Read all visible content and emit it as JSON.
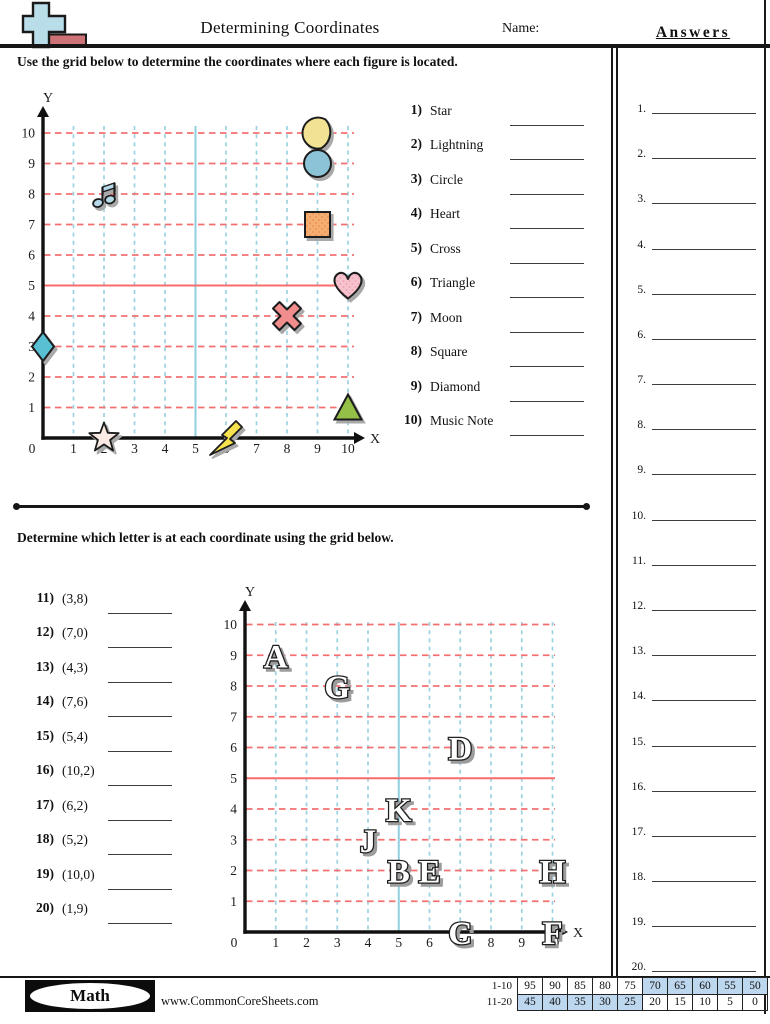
{
  "header": {
    "title": "Determining Coordinates",
    "name_label": "Name:"
  },
  "answers_panel": {
    "heading": "Answers",
    "items": [
      "1.",
      "2.",
      "3.",
      "4.",
      "5.",
      "6.",
      "7.",
      "8.",
      "9.",
      "10.",
      "11.",
      "12.",
      "13.",
      "14.",
      "15.",
      "16.",
      "17.",
      "18.",
      "19.",
      "20."
    ]
  },
  "section1": {
    "instruction": "Use the grid below to determine the coordinates where each figure is located.",
    "questions": [
      {
        "num": "1)",
        "label": "Star"
      },
      {
        "num": "2)",
        "label": "Lightning"
      },
      {
        "num": "3)",
        "label": "Circle"
      },
      {
        "num": "4)",
        "label": "Heart"
      },
      {
        "num": "5)",
        "label": "Cross"
      },
      {
        "num": "6)",
        "label": "Triangle"
      },
      {
        "num": "7)",
        "label": "Moon"
      },
      {
        "num": "8)",
        "label": "Square"
      },
      {
        "num": "9)",
        "label": "Diamond"
      },
      {
        "num": "10)",
        "label": "Music Note"
      }
    ]
  },
  "section2": {
    "instruction": "Determine which letter is at each coordinate using the grid below.",
    "questions": [
      {
        "num": "11)",
        "label": "(3,8)"
      },
      {
        "num": "12)",
        "label": "(7,0)"
      },
      {
        "num": "13)",
        "label": "(4,3)"
      },
      {
        "num": "14)",
        "label": "(7,6)"
      },
      {
        "num": "15)",
        "label": "(5,4)"
      },
      {
        "num": "16)",
        "label": "(10,2)"
      },
      {
        "num": "17)",
        "label": "(6,2)"
      },
      {
        "num": "18)",
        "label": "(5,2)"
      },
      {
        "num": "19)",
        "label": "(10,0)"
      },
      {
        "num": "20)",
        "label": "(1,9)"
      }
    ]
  },
  "footer": {
    "brand": "Math",
    "website": "www.CommonCoreSheets.com",
    "shade_color": "#bdd7ee",
    "score_table": {
      "rows": [
        {
          "label": "1-10",
          "cells": [
            {
              "v": "95",
              "shaded": false
            },
            {
              "v": "90",
              "shaded": false
            },
            {
              "v": "85",
              "shaded": false
            },
            {
              "v": "80",
              "shaded": false
            },
            {
              "v": "75",
              "shaded": false
            },
            {
              "v": "70",
              "shaded": true
            },
            {
              "v": "65",
              "shaded": true
            },
            {
              "v": "60",
              "shaded": true
            },
            {
              "v": "55",
              "shaded": true
            },
            {
              "v": "50",
              "shaded": true
            }
          ]
        },
        {
          "label": "11-20",
          "cells": [
            {
              "v": "45",
              "shaded": true
            },
            {
              "v": "40",
              "shaded": true
            },
            {
              "v": "35",
              "shaded": true
            },
            {
              "v": "30",
              "shaded": true
            },
            {
              "v": "25",
              "shaded": true
            },
            {
              "v": "20",
              "shaded": false
            },
            {
              "v": "15",
              "shaded": false
            },
            {
              "v": "10",
              "shaded": false
            },
            {
              "v": "5",
              "shaded": false
            },
            {
              "v": "0",
              "shaded": false
            }
          ]
        }
      ]
    }
  },
  "chart_data": [
    {
      "type": "scatter",
      "name": "figure-grid",
      "title": "",
      "xlabel": "X",
      "ylabel": "Y",
      "xlim": [
        0,
        10
      ],
      "ylim": [
        0,
        10
      ],
      "grid": {
        "v_dash_color": "#9cd2e0",
        "h_dash_color": "#f47070",
        "solid_x": 5,
        "solid_x_color": "#8fcfdf",
        "solid_y": 5,
        "solid_y_color": "#f86c6c"
      },
      "points": [
        {
          "shape": "moon",
          "x": 9,
          "y": 10,
          "color": "#f2e394"
        },
        {
          "shape": "circle",
          "x": 9,
          "y": 9,
          "color": "#8cc3d6"
        },
        {
          "shape": "music-note",
          "x": 2,
          "y": 8,
          "color": "#b5d9e6"
        },
        {
          "shape": "square",
          "x": 9,
          "y": 7,
          "color": "#f5ae72",
          "texture_dot": "#e98c4e"
        },
        {
          "shape": "heart",
          "x": 10,
          "y": 5,
          "color": "#f6c2cc",
          "texture_dot": "#ec9fb0"
        },
        {
          "shape": "cross",
          "x": 8,
          "y": 4,
          "color": "#f28d8d"
        },
        {
          "shape": "diamond",
          "x": 0,
          "y": 3,
          "color": "#58c0d2"
        },
        {
          "shape": "triangle",
          "x": 10,
          "y": 1,
          "color": "#94c047"
        },
        {
          "shape": "star",
          "x": 2,
          "y": 0,
          "color": "#fbe9e4"
        },
        {
          "shape": "lightning",
          "x": 6,
          "y": 0,
          "color": "#f6e14e"
        }
      ]
    },
    {
      "type": "scatter",
      "name": "letter-grid",
      "title": "",
      "xlabel": "X",
      "ylabel": "Y",
      "xlim": [
        0,
        10
      ],
      "ylim": [
        0,
        10
      ],
      "grid": {
        "v_dash_color": "#9cd2e0",
        "h_dash_color": "#f47070",
        "solid_x": 5,
        "solid_x_color": "#8fcfdf",
        "solid_y": 5,
        "solid_y_color": "#f86c6c"
      },
      "letter_style": {
        "fill": "#ffffff",
        "stroke": "#1f1f1f",
        "shadow": "#9c9c9c"
      },
      "points": [
        {
          "letter": "A",
          "x": 1,
          "y": 9
        },
        {
          "letter": "G",
          "x": 3,
          "y": 8
        },
        {
          "letter": "D",
          "x": 7,
          "y": 6
        },
        {
          "letter": "K",
          "x": 5,
          "y": 4
        },
        {
          "letter": "J",
          "x": 4,
          "y": 3
        },
        {
          "letter": "B",
          "x": 5,
          "y": 2
        },
        {
          "letter": "E",
          "x": 6,
          "y": 2
        },
        {
          "letter": "H",
          "x": 10,
          "y": 2
        },
        {
          "letter": "C",
          "x": 7,
          "y": 0
        },
        {
          "letter": "F",
          "x": 10,
          "y": 0
        }
      ]
    }
  ]
}
